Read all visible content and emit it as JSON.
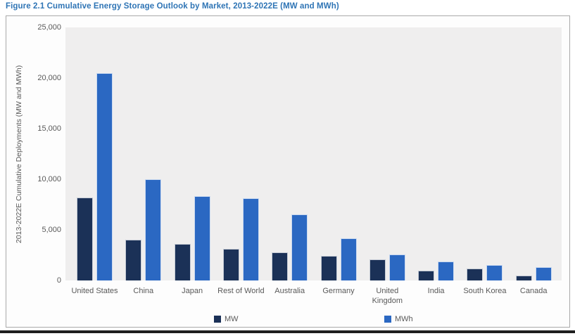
{
  "figure": {
    "title": "Figure 2.1  Cumulative Energy Storage Outlook by Market, 2013-2022E (MW and MWh)"
  },
  "chart_data": {
    "type": "bar",
    "title": "Cumulative Energy Storage Outlook by Market, 2013-2022E (MW and MWh)",
    "ylabel": "2013-2022E Cumulative Deployments (MW and MWh)",
    "xlabel": "",
    "ylim": [
      0,
      25000
    ],
    "yticks": [
      0,
      5000,
      10000,
      15000,
      20000,
      25000
    ],
    "ytick_labels": [
      "0",
      "5,000",
      "10,000",
      "15,000",
      "20,000",
      "25,000"
    ],
    "grid": false,
    "legend_position": "bottom-inside",
    "categories": [
      "United States",
      "China",
      "Japan",
      "Rest of World",
      "Australia",
      "Germany",
      "United Kingdom",
      "India",
      "South Korea",
      "Canada"
    ],
    "series": [
      {
        "name": "MW",
        "color": "#1b3157",
        "values": [
          8200,
          4000,
          3600,
          3100,
          2800,
          2400,
          2100,
          1000,
          1200,
          500
        ]
      },
      {
        "name": "MWh",
        "color": "#2b68c2",
        "values": [
          20500,
          10000,
          8300,
          8100,
          6500,
          4200,
          2600,
          1900,
          1500,
          1300
        ]
      }
    ]
  },
  "colors": {
    "figure_title": "#2e74b5",
    "axis_text": "#595959",
    "plot_background": "#efeeee",
    "chart_border": "#a9a9a9",
    "bottom_rule": "#1f1f1f"
  }
}
